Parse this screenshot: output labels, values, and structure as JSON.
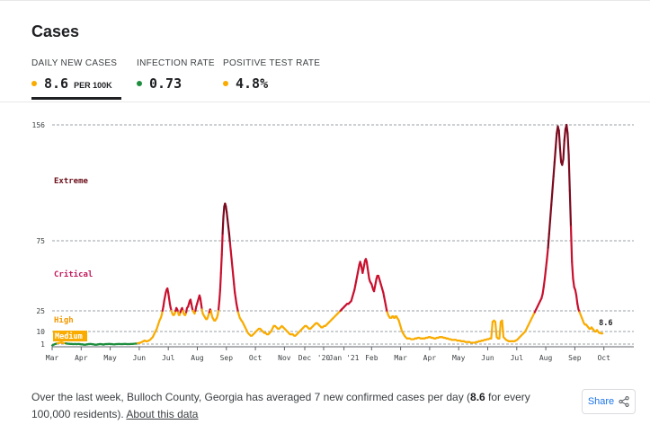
{
  "card": {
    "title": "Cases"
  },
  "tabs": [
    {
      "label": "DAILY NEW CASES",
      "value": "8.6",
      "unit": "PER 100K",
      "dot_color": "#f9ab00",
      "selected": true
    },
    {
      "label": "INFECTION RATE",
      "value": "0.73",
      "unit": "",
      "dot_color": "#1e8e3e",
      "selected": false
    },
    {
      "label": "POSITIVE TEST RATE",
      "value": "4.8%",
      "unit": "",
      "dot_color": "#f9ab00",
      "selected": false
    }
  ],
  "footer": {
    "summary_prefix": "Over the last week, Bulloch County, Georgia has averaged 7 new confirmed cases per day (",
    "summary_value": "8.6",
    "summary_suffix": " for every 100,000 residents). ",
    "about_link": "About this data",
    "share_label": "Share"
  },
  "colors": {
    "extreme": "#6b0f1a",
    "critical": "#c2185b",
    "high": "#f29900",
    "medium": "#f9ab00",
    "low": "#1e8e3e",
    "line_extreme": "#7b0a1f",
    "line_critical": "#c8102e",
    "line_high": "#f9ab00",
    "line_low": "#1e8e3e"
  },
  "chart_data": {
    "type": "line",
    "title": "",
    "xlabel": "",
    "ylabel": "",
    "y_ticks": [
      1,
      10,
      25,
      75,
      156
    ],
    "x_tick_labels": [
      "Mar",
      "Apr",
      "May",
      "Jun",
      "Jul",
      "Aug",
      "Sep",
      "Oct",
      "Nov",
      "Dec",
      "'20",
      "Jan '21",
      "Feb",
      "Mar",
      "Apr",
      "May",
      "Jun",
      "Jul",
      "Aug",
      "Sep",
      "Oct"
    ],
    "risk_bands": [
      {
        "label": "Extreme",
        "color": "#6b0f1a"
      },
      {
        "label": "Critical",
        "color": "#c2185b"
      },
      {
        "label": "High",
        "color": "#f29900"
      },
      {
        "label": "Medium",
        "color": "#f9ab00"
      }
    ],
    "last_value_label": "8.6",
    "series": [
      {
        "x": [
          0.0,
          0.06,
          0.1,
          0.14,
          0.2,
          0.25,
          0.3,
          0.34,
          0.37,
          0.4,
          0.43,
          0.46,
          0.48,
          0.5,
          0.52,
          0.55,
          0.58,
          0.61,
          0.64,
          0.67,
          0.7,
          0.73,
          0.76,
          0.8,
          0.84,
          0.88,
          0.92,
          0.96,
          1.0,
          1.0,
          1.03,
          1.06,
          1.1,
          1.12,
          1.15,
          1.18,
          1.21,
          1.24,
          1.27,
          1.3,
          1.33,
          1.36,
          1.38,
          1.41,
          1.44,
          1.47,
          1.5,
          1.53,
          1.56,
          1.59,
          1.62,
          1.65,
          1.68,
          1.71,
          1.74,
          1.77,
          1.8,
          1.83,
          1.86,
          1.89,
          1.92,
          1.95,
          1.98,
          2.0,
          2.02,
          2.05,
          2.08,
          2.11,
          2.14,
          2.17,
          2.2,
          2.25,
          2.3,
          2.35,
          2.4,
          2.45,
          2.5,
          2.55,
          2.6,
          2.65,
          2.7,
          2.75,
          2.8,
          2.85,
          2.9,
          2.95,
          3.0,
          3.05,
          3.1,
          3.15,
          3.2,
          3.25,
          3.3,
          3.35,
          3.4,
          3.45,
          3.5,
          3.55,
          3.6,
          3.65,
          3.7,
          3.75,
          3.8,
          3.85,
          3.9,
          3.95,
          4.0,
          4.03,
          4.06,
          4.09,
          4.12,
          4.15,
          4.18,
          4.21,
          4.24,
          4.27,
          4.3,
          4.33,
          4.36,
          4.39,
          4.42,
          4.45,
          4.48,
          4.51,
          4.54,
          4.57,
          4.6,
          4.63,
          4.66,
          4.69,
          4.72,
          4.75,
          4.78,
          4.81,
          4.84,
          4.87,
          4.9,
          4.93,
          4.96,
          5.0,
          5.03,
          5.06,
          5.09,
          5.12,
          5.15,
          5.18,
          5.21,
          5.24,
          5.27,
          5.3,
          5.33,
          5.36,
          5.39,
          5.42,
          5.45,
          5.48,
          5.51,
          5.54,
          5.57,
          5.6,
          5.63,
          5.66,
          5.69,
          5.72,
          5.75,
          5.78,
          5.81,
          5.84,
          5.87,
          5.9,
          5.93,
          5.96,
          6.0,
          6.03,
          6.06,
          6.09,
          6.12,
          6.15,
          6.18,
          6.21,
          6.24,
          6.27,
          6.3,
          6.33,
          6.36,
          6.39,
          6.42,
          6.45,
          6.48,
          6.51,
          6.54,
          6.57,
          6.6,
          6.63,
          6.66,
          6.69,
          6.72,
          6.75,
          6.78,
          6.81,
          6.84,
          6.87,
          6.9,
          6.93,
          6.96,
          7.0,
          7.05,
          7.1,
          7.15,
          7.2,
          7.25,
          7.3,
          7.35,
          7.4,
          7.45,
          7.5,
          7.55,
          7.6,
          7.65,
          7.7,
          7.75,
          7.8,
          7.85,
          7.9,
          7.95,
          8.0,
          8.05,
          8.1,
          8.15,
          8.2,
          8.25,
          8.3,
          8.35,
          8.4,
          8.45,
          8.5,
          8.55,
          8.6,
          8.65,
          8.7,
          8.75,
          8.8,
          8.85,
          8.9,
          8.95,
          9.0,
          9.05,
          9.1,
          9.15,
          9.2,
          9.25,
          9.3,
          9.35,
          9.4,
          9.45,
          9.5,
          9.55,
          9.6,
          9.65,
          9.7,
          9.75,
          9.8,
          9.85,
          9.9,
          9.95,
          10.0,
          10.05,
          10.1,
          10.15,
          10.2,
          10.25,
          10.3,
          10.35,
          10.4,
          10.45,
          10.5,
          10.55,
          10.6,
          10.65,
          10.7,
          10.75,
          10.8,
          10.85,
          10.9,
          10.95,
          11.0,
          11.03,
          11.06,
          11.09,
          11.12,
          11.15,
          11.18,
          11.21,
          11.24,
          11.27,
          11.3,
          11.33,
          11.36,
          11.39,
          11.42,
          11.45,
          11.48,
          11.51,
          11.54,
          11.57,
          11.6,
          11.63,
          11.66,
          11.69,
          11.72,
          11.75,
          11.78,
          11.81,
          11.84,
          11.87,
          11.9,
          11.93,
          11.96,
          12.0,
          12.03,
          12.06,
          12.09,
          12.12,
          12.15,
          12.18,
          12.21,
          12.24,
          12.27,
          12.3,
          12.33,
          12.36,
          12.39,
          12.42,
          12.45,
          12.48,
          12.51,
          12.54,
          12.57,
          12.6,
          12.63,
          12.66,
          12.69,
          12.72,
          12.75,
          12.78,
          12.81,
          12.84,
          12.87,
          12.9,
          12.93,
          12.96,
          13.0,
          13.05,
          13.1,
          13.15,
          13.2,
          13.25,
          13.3,
          13.35,
          13.4,
          13.45,
          13.5,
          13.55,
          13.6,
          13.65,
          13.7,
          13.75,
          13.8,
          13.85,
          13.9,
          13.95,
          14.0,
          14.05,
          14.1,
          14.15,
          14.2,
          14.25,
          14.3,
          14.35,
          14.4,
          14.45,
          14.5,
          14.55,
          14.6,
          14.65,
          14.7,
          14.75,
          14.8,
          14.85,
          14.9,
          14.95,
          15.0,
          15.05,
          15.1,
          15.15,
          15.2,
          15.25,
          15.3,
          15.35,
          15.4,
          15.45,
          15.5,
          15.55,
          15.6,
          15.65,
          15.7,
          15.75,
          15.8,
          15.85,
          15.9,
          15.95,
          16.0,
          16.05,
          16.1,
          16.15,
          16.2,
          16.25,
          16.3,
          16.35,
          16.4,
          16.45,
          16.5,
          16.55,
          16.6,
          16.65,
          16.7,
          16.75,
          16.8,
          16.85,
          16.9,
          16.95,
          17.0,
          17.05,
          17.1,
          17.15,
          17.2,
          17.25,
          17.3,
          17.35,
          17.4,
          17.45,
          17.5,
          17.55,
          17.6,
          17.65,
          17.7,
          17.75,
          17.8,
          17.85,
          17.9,
          17.95,
          18.0,
          18.04,
          18.08,
          18.12,
          18.16,
          18.2,
          18.24,
          18.28,
          18.32,
          18.36,
          18.4,
          18.44,
          18.48,
          18.52,
          18.56,
          18.6,
          18.64,
          18.68,
          18.72,
          18.76,
          18.8,
          18.84,
          18.88,
          18.92,
          18.96,
          19.0,
          19.04,
          19.08,
          19.12,
          19.16,
          19.2,
          19.24,
          19.28,
          19.32,
          19.36,
          19.4,
          19.44,
          19.48,
          19.52,
          19.56,
          19.6,
          19.64,
          19.68,
          19.72,
          19.76,
          19.8,
          19.84,
          19.88,
          19.92,
          19.96,
          20.0,
          20.04,
          20.08,
          20.12,
          20.16,
          20.2,
          20.24
        ],
        "y": [
          0.5,
          0.8,
          1.0,
          1.2,
          1.5,
          1.8,
          2.0,
          2.2,
          2.0,
          1.8,
          1.7,
          1.6,
          1.6,
          1.5,
          1.4,
          1.3,
          1.3,
          1.2,
          1.2,
          1.1,
          1.1,
          1.1,
          1.0,
          1.0,
          1.1,
          1.0,
          1.0,
          1.1,
          1.0,
          1.0,
          1.0,
          0.9,
          0.9,
          0.9,
          0.8,
          0.8,
          0.8,
          0.8,
          0.9,
          0.9,
          1.0,
          1.0,
          1.0,
          1.1,
          1.0,
          1.0,
          0.9,
          0.9,
          0.8,
          0.8,
          0.8,
          0.8,
          0.9,
          0.9,
          1.0,
          1.0,
          1.0,
          0.9,
          0.9,
          0.8,
          0.9,
          1.0,
          1.0,
          1.0,
          1.0,
          1.0,
          1.1,
          1.1,
          1.0,
          1.0,
          1.0,
          0.9,
          0.9,
          1.0,
          1.0,
          1.1,
          1.0,
          1.0,
          1.0,
          1.1,
          1.1,
          1.0,
          1.0,
          1.0,
          1.1,
          1.1,
          1.2,
          1.3,
          1.3,
          1.5,
          1.8,
          2.0,
          2.5,
          3.0,
          3.5,
          3.0,
          3.0,
          3.5,
          4.0,
          5.0,
          6.0,
          8.0,
          10.0,
          12.0,
          15.0,
          18.0,
          20.0,
          22.0,
          25.0,
          28.0,
          32.0,
          35.0,
          38.0,
          40.0,
          41.0,
          38.0,
          34.0,
          30.0,
          27.0,
          25.0,
          23.0,
          22.0,
          22.0,
          23.0,
          25.0,
          27.0,
          26.0,
          24.0,
          22.0,
          22.0,
          24.0,
          26.0,
          27.0,
          25.0,
          23.0,
          22.0,
          22.0,
          24.0,
          27.0,
          28.0,
          30.0,
          32.0,
          33.0,
          30.0,
          27.0,
          25.0,
          24.0,
          23.0,
          25.0,
          28.0,
          30.0,
          32.0,
          34.0,
          36.0,
          34.0,
          30.0,
          26.0,
          23.0,
          22.0,
          21.0,
          20.0,
          19.0,
          19.0,
          20.0,
          22.0,
          24.0,
          26.0,
          25.0,
          22.0,
          20.0,
          19.0,
          18.0,
          18.0,
          19.0,
          20.0,
          22.0,
          26.0,
          32.0,
          40.0,
          52.0,
          65.0,
          80.0,
          92.0,
          99.0,
          101.0,
          99.0,
          95.0,
          90.0,
          85.0,
          80.0,
          74.0,
          68.0,
          62.0,
          56.0,
          50.0,
          44.0,
          38.0,
          34.0,
          30.0,
          27.0,
          24.0,
          22.0,
          20.0,
          19.0,
          18.0,
          17.0,
          15.0,
          13.0,
          11.0,
          9.0,
          8.0,
          7.0,
          7.0,
          8.0,
          9.0,
          10.0,
          11.0,
          12.0,
          12.0,
          11.0,
          10.0,
          9.0,
          9.0,
          8.0,
          8.0,
          9.0,
          10.0,
          12.0,
          14.0,
          14.0,
          13.0,
          12.0,
          12.0,
          13.0,
          14.0,
          13.0,
          12.0,
          11.0,
          10.0,
          9.0,
          8.0,
          8.0,
          8.0,
          7.0,
          7.0,
          8.0,
          9.0,
          10.0,
          11.0,
          12.0,
          13.0,
          14.0,
          14.0,
          13.0,
          12.0,
          12.0,
          13.0,
          14.0,
          15.0,
          16.0,
          16.0,
          15.0,
          14.0,
          13.0,
          13.0,
          14.0,
          14.0,
          15.0,
          16.0,
          17.0,
          18.0,
          19.0,
          20.0,
          21.0,
          22.0,
          23.0,
          24.0,
          25.0,
          26.0,
          27.0,
          28.0,
          29.0,
          30.0,
          30.0,
          31.0,
          32.0,
          34.0,
          36.0,
          38.0,
          40.0,
          43.0,
          46.0,
          49.0,
          52.0,
          55.0,
          58.0,
          60.0,
          58.0,
          55.0,
          52.0,
          55.0,
          58.0,
          61.0,
          62.0,
          60.0,
          56.0,
          52.0,
          48.0,
          46.0,
          45.0,
          44.0,
          42.0,
          40.0,
          39.0,
          42.0,
          45.0,
          48.0,
          50.0,
          50.0,
          48.0,
          46.0,
          44.0,
          42.0,
          40.0,
          38.0,
          35.0,
          32.0,
          29.0,
          26.0,
          24.0,
          22.0,
          21.0,
          20.0,
          20.0,
          20.0,
          21.0,
          21.0,
          20.0,
          20.0,
          21.0,
          21.0,
          20.0,
          19.0,
          18.0,
          16.0,
          14.0,
          12.0,
          10.0,
          9.0,
          8.0,
          7.0,
          6.0,
          5.0,
          5.0,
          5.0,
          4.5,
          4.5,
          4.5,
          5.0,
          5.0,
          5.5,
          5.5,
          5.0,
          5.0,
          5.0,
          5.0,
          5.5,
          5.5,
          6.0,
          6.0,
          5.5,
          5.5,
          5.0,
          5.0,
          5.5,
          5.5,
          6.0,
          6.0,
          6.0,
          5.5,
          5.5,
          5.0,
          5.0,
          4.5,
          4.5,
          4.0,
          4.0,
          4.0,
          4.0,
          3.5,
          3.5,
          3.5,
          3.0,
          3.0,
          3.0,
          2.5,
          2.5,
          2.5,
          2.5,
          2.0,
          2.0,
          2.0,
          2.0,
          2.5,
          2.5,
          3.0,
          3.0,
          3.5,
          3.5,
          4.0,
          4.0,
          4.5,
          4.5,
          5.0,
          5.0,
          17.0,
          18.0,
          17.0,
          6.0,
          5.0,
          5.0,
          17.0,
          18.0,
          6.0,
          5.0,
          4.0,
          3.5,
          3.0,
          3.0,
          3.0,
          3.0,
          3.0,
          3.5,
          4.0,
          5.0,
          6.0,
          7.0,
          8.0,
          9.0,
          10.0,
          12.0,
          14.0,
          16.0,
          18.0,
          20.0,
          22.0,
          24.0,
          26.0,
          28.0,
          30.0,
          32.0,
          34.0,
          37.0,
          42.0,
          48.0,
          55.0,
          62.0,
          70.0,
          80.0,
          90.0,
          100.0,
          110.0,
          120.0,
          130.0,
          140.0,
          150.0,
          155.0,
          152.0,
          140.0,
          130.0,
          128.0,
          132.0,
          145.0,
          153.0,
          156.0,
          150.0,
          135.0,
          110.0,
          85.0,
          60.0,
          48.0,
          42.0,
          40.0,
          36.0,
          30.0,
          26.0,
          24.0,
          22.0,
          20.0,
          18.0,
          16.0,
          15.0,
          15.0,
          14.0,
          13.0,
          12.0,
          12.0,
          13.0,
          12.0,
          11.0,
          10.0,
          10.0,
          11.0,
          10.0,
          9.0,
          9.0,
          8.6,
          8.6
        ]
      }
    ]
  }
}
